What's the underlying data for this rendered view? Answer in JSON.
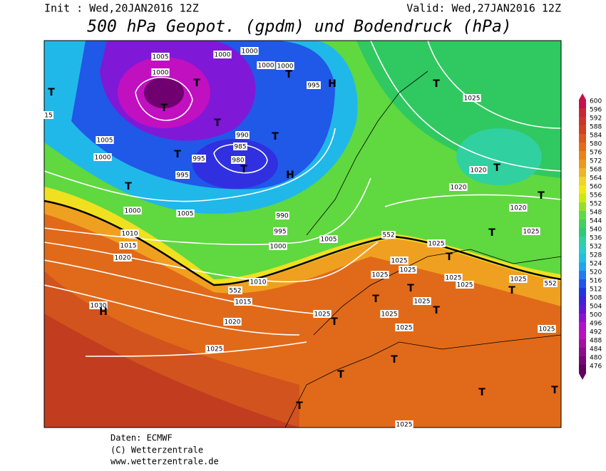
{
  "header": {
    "init": "Init : Wed,20JAN2016 12Z",
    "valid": "Valid: Wed,27JAN2016 12Z",
    "title": "500 hPa Geopot. (gpdm) und Bodendruck (hPa)"
  },
  "colorbar": {
    "ticks": [
      600,
      596,
      592,
      588,
      584,
      580,
      576,
      572,
      568,
      564,
      560,
      556,
      552,
      548,
      544,
      540,
      536,
      532,
      528,
      524,
      520,
      516,
      512,
      508,
      504,
      500,
      496,
      492,
      488,
      484,
      480,
      476
    ]
  },
  "map": {
    "isobar_labels": [
      "1005",
      "1000",
      "1000",
      "1000",
      "1000",
      "1000",
      "995",
      "990",
      "985",
      "980",
      "995",
      "995",
      "1005",
      "1000",
      "1000",
      "1005",
      "990",
      "995",
      "1000",
      "1005",
      "1010",
      "1015",
      "1020",
      "1010",
      "1015",
      "1020",
      "1025",
      "1030",
      "1025",
      "1025",
      "1025",
      "1025",
      "1025",
      "1025",
      "1025",
      "1025",
      "1025",
      "1025",
      "1025",
      "1020",
      "1020",
      "1020",
      "1025",
      "1025",
      "1025",
      "552",
      "552",
      "552",
      "1025",
      "15"
    ],
    "symbols": [
      "H",
      "H",
      "H",
      "T",
      "T",
      "T",
      "T",
      "T",
      "T",
      "T",
      "T",
      "T",
      "T",
      "T",
      "T",
      "T",
      "T",
      "T",
      "T",
      "T",
      "T",
      "T",
      "T",
      "T",
      "T",
      "T",
      "T"
    ]
  },
  "footer": {
    "source": "Daten: ECMWF",
    "copyright": "(C) Wetterzentrale",
    "url": "www.wetterzentrale.de"
  }
}
